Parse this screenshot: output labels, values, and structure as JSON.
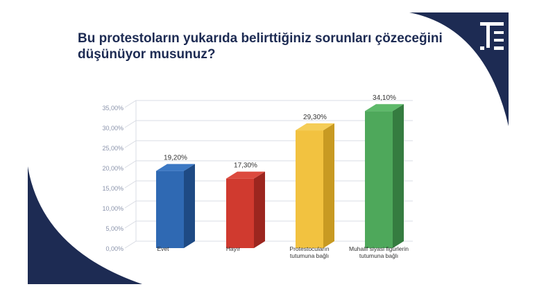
{
  "title": "Bu protestoların yukarıda belirttiğiniz sorunları çözeceğini düşünüyor musunuz?",
  "colors": {
    "navy": "#1d2b53",
    "grid": "#d9dce4",
    "tick": "#8a93ab"
  },
  "chart_data": {
    "type": "bar",
    "categories": [
      [
        "Evet"
      ],
      [
        "Hayır"
      ],
      [
        "Protestocuların",
        "tutumuna bağlı"
      ],
      [
        "Muhalif siyasi figürlerin",
        "tutumuna bağlı"
      ]
    ],
    "values": [
      19.2,
      17.3,
      29.3,
      34.1
    ],
    "value_labels": [
      "19,20%",
      "17,30%",
      "29,30%",
      "34,10%"
    ],
    "colors": [
      {
        "front": "#2f69b3",
        "side": "#1e4a84",
        "top": "#3b78c4"
      },
      {
        "front": "#d03a2f",
        "side": "#9c261f",
        "top": "#dc4a3e"
      },
      {
        "front": "#f2c240",
        "side": "#c89a22",
        "top": "#f5cd57"
      },
      {
        "front": "#4ea85b",
        "side": "#357c40",
        "top": "#5db96a"
      }
    ],
    "yticks": [
      0,
      5,
      10,
      15,
      20,
      25,
      30,
      35
    ],
    "ytick_labels": [
      "0,00%",
      "5,00%",
      "10,00%",
      "15,00%",
      "20,00%",
      "25,00%",
      "30,00%",
      "35,00%"
    ],
    "ylim": [
      0,
      35
    ],
    "grid": true,
    "style": "3d-bar"
  }
}
